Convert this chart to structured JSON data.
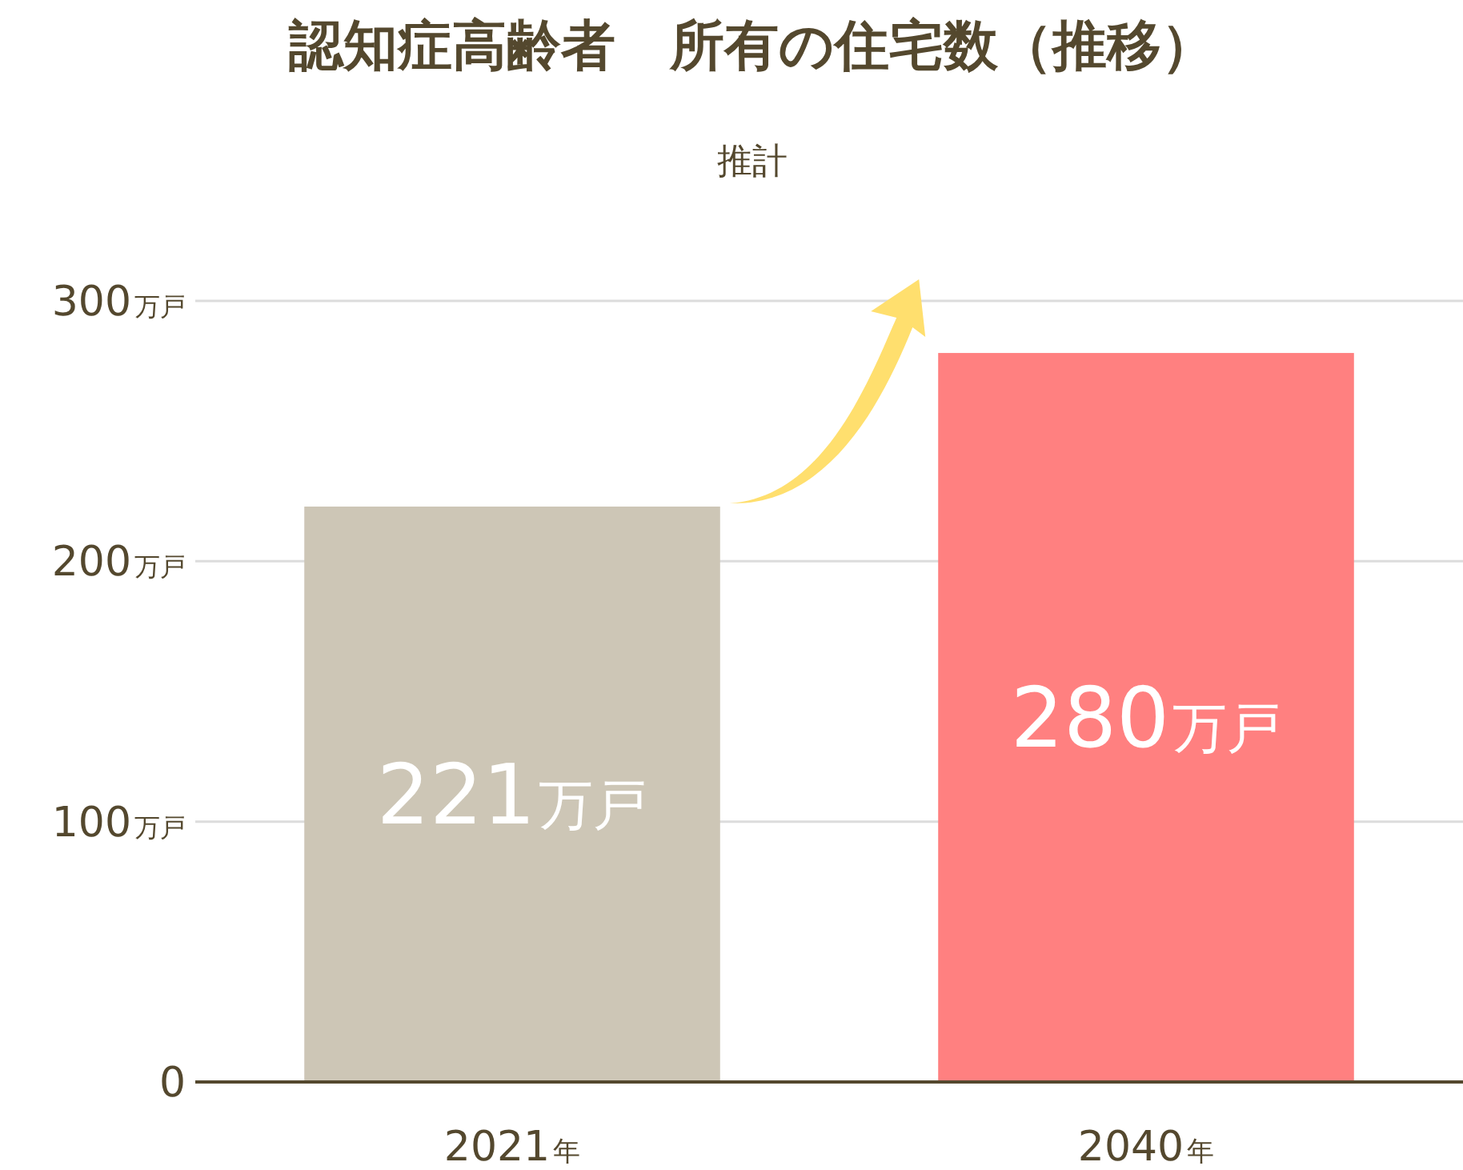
{
  "chart_data": {
    "type": "bar",
    "title": "認知症高齢者　所有の住宅数（推移）",
    "subtitle": "推計",
    "categories": [
      "2021年",
      "2040年"
    ],
    "values": [
      221,
      280
    ],
    "colors": [
      "#cdc6b6",
      "#ff8080"
    ],
    "value_labels": [
      "221万戸",
      "280万戸"
    ],
    "ylim": [
      0,
      300
    ],
    "yticks": [
      {
        "value": 0,
        "label": "0"
      },
      {
        "value": 100,
        "label": "100万戸"
      },
      {
        "value": 200,
        "label": "200万戸"
      },
      {
        "value": 300,
        "label": "300万戸"
      }
    ],
    "grid": "y"
  }
}
